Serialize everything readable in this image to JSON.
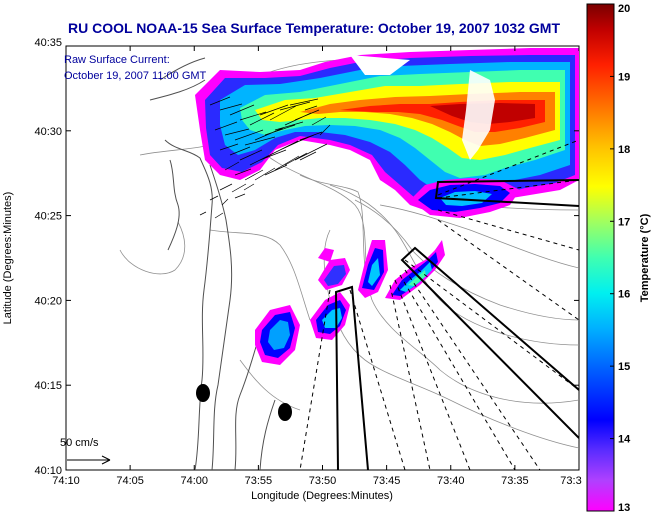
{
  "header": {
    "title": "RU COOL  NOAA-15  Sea Surface Temperature:  October 19, 2007 1032 GMT"
  },
  "annotations": {
    "current_title": "Raw Surface Current:",
    "current_time": "October 19, 2007 11:00 GMT",
    "scale_label": "50 cm/s"
  },
  "chart_data": {
    "type": "heatmap",
    "title": "RU COOL  NOAA-15  Sea Surface Temperature:  October 19, 2007 1032 GMT",
    "xlabel": "Longitude (Degrees:Minutes)",
    "ylabel": "Latitude (Degrees:Minutes)",
    "x_ticks": [
      "74:10",
      "74:05",
      "74:00",
      "73:55",
      "73:50",
      "73:45",
      "73:40",
      "73:35",
      "73:3"
    ],
    "y_ticks": [
      "40:35",
      "40:30",
      "40:25",
      "40:20",
      "40:15",
      "40:10"
    ],
    "xlim": [
      "74:10",
      "73:30"
    ],
    "ylim": [
      "40:10",
      "40:35"
    ],
    "colorbar": {
      "label": "Temperature (°C)",
      "ticks": [
        "20",
        "19",
        "18",
        "17",
        "16",
        "15",
        "14",
        "13"
      ],
      "range": [
        13,
        20
      ],
      "colors": [
        "#ff00ff",
        "#6a2aff",
        "#0000ff",
        "#0078ff",
        "#00d8ff",
        "#40ffc0",
        "#a0ff60",
        "#ffff00",
        "#ffb000",
        "#ff5000",
        "#e00000",
        "#8a0000"
      ]
    },
    "legend_placement": "top-left"
  }
}
